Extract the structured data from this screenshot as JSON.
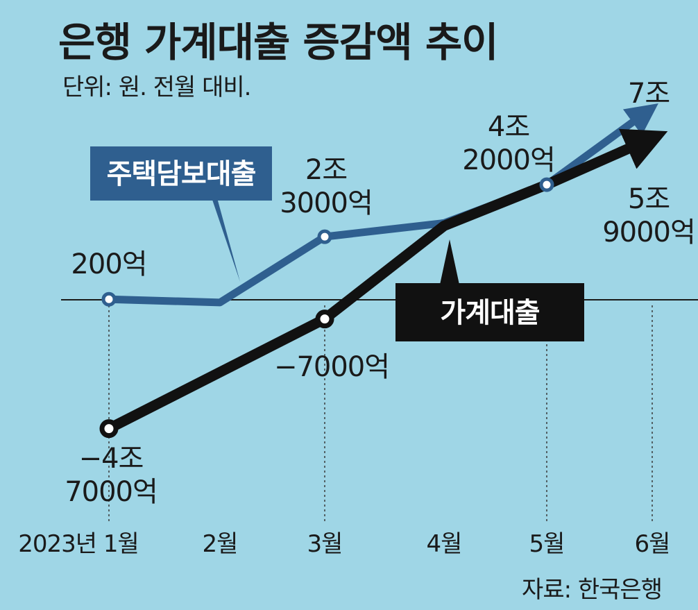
{
  "chart_data": {
    "type": "line",
    "title": "은행 가계대출 증감액 추이",
    "subtitle": "단위: 원. 전월 대비.",
    "source": "자료: 한국은행",
    "categories": [
      "2023년 1월",
      "2월",
      "3월",
      "4월",
      "5월",
      "6월"
    ],
    "unit": "억원",
    "series": [
      {
        "name": "주택담보대출",
        "color": "#2f5f8f",
        "values": [
          200,
          -1000,
          23000,
          28000,
          42000,
          70000
        ]
      },
      {
        "name": "가계대출",
        "color": "#111111",
        "values": [
          -47000,
          null,
          -7000,
          27000,
          42000,
          59000
        ]
      }
    ],
    "annotations": [
      {
        "series": 0,
        "index": 0,
        "lines": [
          "200억"
        ]
      },
      {
        "series": 0,
        "index": 2,
        "lines": [
          "2조",
          "3000억"
        ]
      },
      {
        "series": 0,
        "index": 4,
        "lines": [
          "4조",
          "2000억"
        ]
      },
      {
        "series": 0,
        "index": 5,
        "lines": [
          "7조"
        ]
      },
      {
        "series": 1,
        "index": 0,
        "lines": [
          "−4조",
          "7000억"
        ]
      },
      {
        "series": 1,
        "index": 2,
        "lines": [
          "−7000억"
        ]
      },
      {
        "series": 1,
        "index": 5,
        "lines": [
          "5조",
          "9000억"
        ]
      }
    ],
    "markers": [
      {
        "series": 0,
        "index": 0
      },
      {
        "series": 0,
        "index": 2
      },
      {
        "series": 0,
        "index": 4
      },
      {
        "series": 1,
        "index": 0
      },
      {
        "series": 1,
        "index": 2
      }
    ],
    "zero_line": true,
    "ylim": [
      -50000,
      72000
    ]
  }
}
